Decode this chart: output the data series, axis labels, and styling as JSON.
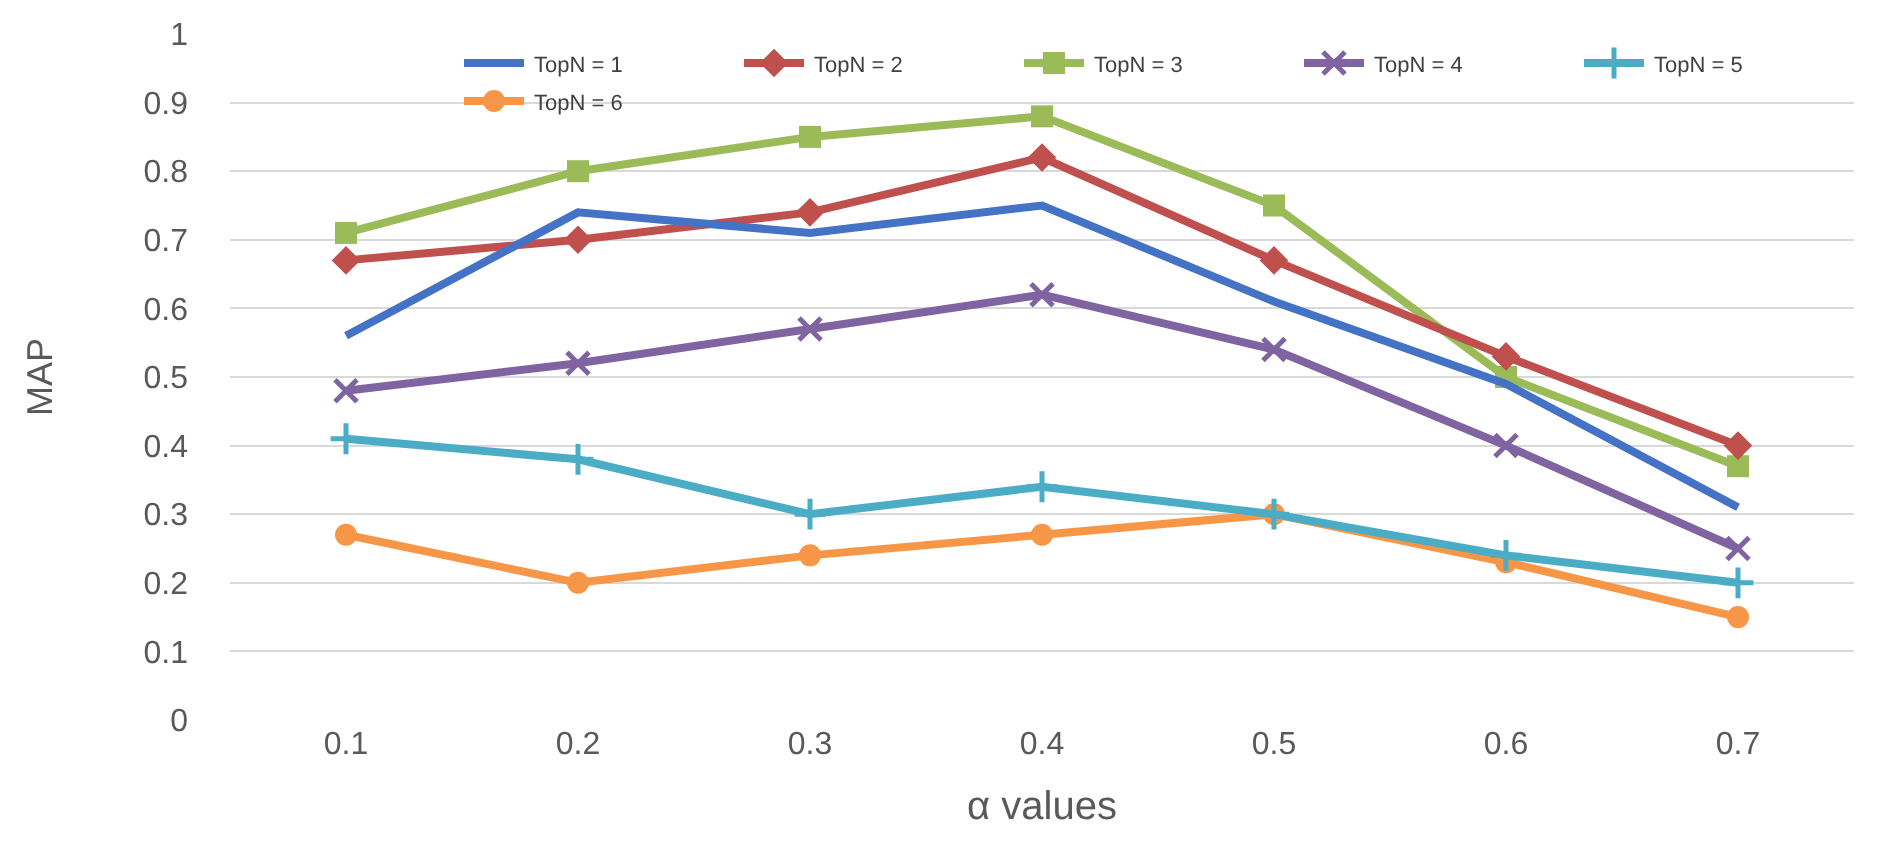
{
  "chart_data": {
    "type": "line",
    "xlabel": "α values",
    "ylabel": "MAP",
    "categories": [
      "0.1",
      "0.2",
      "0.3",
      "0.4",
      "0.5",
      "0.6",
      "0.7"
    ],
    "ylim": [
      0,
      1
    ],
    "yticks": [
      0,
      0.1,
      0.2,
      0.3,
      0.4,
      0.5,
      0.6,
      0.7,
      0.8,
      0.9,
      1
    ],
    "grid": "y",
    "legend": "top right",
    "line_style": "solid",
    "series": [
      {
        "name": "TopN = 1",
        "color": "#4472c4",
        "marker": "none",
        "values": [
          0.56,
          0.74,
          0.71,
          0.75,
          0.61,
          0.49,
          0.31
        ]
      },
      {
        "name": "TopN = 2",
        "color": "#c0504d",
        "marker": "diamond",
        "values": [
          0.67,
          0.7,
          0.74,
          0.82,
          0.67,
          0.53,
          0.4
        ]
      },
      {
        "name": "TopN = 3",
        "color": "#9bbb59",
        "marker": "square",
        "values": [
          0.71,
          0.8,
          0.85,
          0.88,
          0.75,
          0.5,
          0.37
        ]
      },
      {
        "name": "TopN = 4",
        "color": "#8064a2",
        "marker": "cross",
        "values": [
          0.48,
          0.52,
          0.57,
          0.62,
          0.54,
          0.4,
          0.25
        ]
      },
      {
        "name": "TopN = 5",
        "color": "#4bacc6",
        "marker": "plus",
        "values": [
          0.41,
          0.38,
          0.3,
          0.34,
          0.3,
          0.24,
          0.2
        ]
      },
      {
        "name": "TopN = 6",
        "color": "#f79646",
        "marker": "circle",
        "values": [
          0.27,
          0.2,
          0.24,
          0.27,
          0.3,
          0.23,
          0.15
        ]
      }
    ]
  }
}
